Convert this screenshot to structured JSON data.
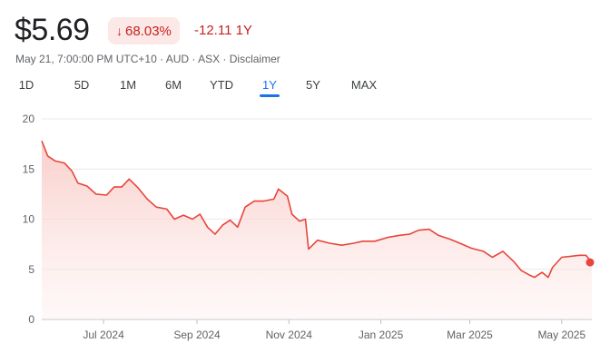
{
  "quote": {
    "price": "$5.69",
    "change_percent": "68.03%",
    "change_abs": "-12.11 1Y",
    "meta": "May 21, 7:00:00 PM UTC+10 · AUD · ASX · Disclaimer"
  },
  "tabs": [
    {
      "label": "1D"
    },
    {
      "label": "5D"
    },
    {
      "label": "1M"
    },
    {
      "label": "6M"
    },
    {
      "label": "YTD"
    },
    {
      "label": "1Y",
      "active": true
    },
    {
      "label": "5Y"
    },
    {
      "label": "MAX"
    }
  ],
  "colors": {
    "line": "#e8453c",
    "fill": "#fbd5d2",
    "negative": "#c5221f",
    "active_tab": "#1a73e8"
  },
  "chart_data": {
    "type": "area",
    "y_ticks": [
      0,
      5,
      10,
      15,
      20
    ],
    "ylim": [
      0,
      20
    ],
    "x_tick_labels": [
      "Jul 2024",
      "Sep 2024",
      "Nov 2024",
      "Jan 2025",
      "Mar 2025",
      "May 2025"
    ],
    "x_tick_dates": [
      "2024-07-01",
      "2024-09-01",
      "2024-11-01",
      "2025-01-01",
      "2025-03-01",
      "2025-05-01"
    ],
    "xlim": [
      "2024-05-21",
      "2025-05-21"
    ],
    "series": [
      {
        "points": [
          [
            "2024-05-21",
            17.8
          ],
          [
            "2024-05-25",
            16.3
          ],
          [
            "2024-05-30",
            15.8
          ],
          [
            "2024-06-05",
            15.6
          ],
          [
            "2024-06-10",
            14.8
          ],
          [
            "2024-06-14",
            13.6
          ],
          [
            "2024-06-20",
            13.3
          ],
          [
            "2024-06-26",
            12.5
          ],
          [
            "2024-07-03",
            12.4
          ],
          [
            "2024-07-08",
            13.2
          ],
          [
            "2024-07-13",
            13.2
          ],
          [
            "2024-07-18",
            14.0
          ],
          [
            "2024-07-24",
            13.1
          ],
          [
            "2024-07-30",
            12.0
          ],
          [
            "2024-08-05",
            11.2
          ],
          [
            "2024-08-12",
            11.0
          ],
          [
            "2024-08-17",
            10.0
          ],
          [
            "2024-08-23",
            10.4
          ],
          [
            "2024-08-29",
            10.0
          ],
          [
            "2024-09-03",
            10.5
          ],
          [
            "2024-09-08",
            9.2
          ],
          [
            "2024-09-13",
            8.5
          ],
          [
            "2024-09-18",
            9.4
          ],
          [
            "2024-09-23",
            9.9
          ],
          [
            "2024-09-28",
            9.2
          ],
          [
            "2024-10-03",
            11.2
          ],
          [
            "2024-10-09",
            11.8
          ],
          [
            "2024-10-15",
            11.8
          ],
          [
            "2024-10-22",
            12.0
          ],
          [
            "2024-10-25",
            13.0
          ],
          [
            "2024-10-31",
            12.3
          ],
          [
            "2024-11-03",
            10.5
          ],
          [
            "2024-11-08",
            9.8
          ],
          [
            "2024-11-12",
            10.0
          ],
          [
            "2024-11-14",
            7.0
          ],
          [
            "2024-11-20",
            7.9
          ],
          [
            "2024-11-28",
            7.6
          ],
          [
            "2024-12-06",
            7.4
          ],
          [
            "2024-12-14",
            7.6
          ],
          [
            "2024-12-20",
            7.8
          ],
          [
            "2024-12-28",
            7.8
          ],
          [
            "2025-01-06",
            8.2
          ],
          [
            "2025-01-14",
            8.4
          ],
          [
            "2025-01-20",
            8.5
          ],
          [
            "2025-01-26",
            8.9
          ],
          [
            "2025-02-02",
            9.0
          ],
          [
            "2025-02-08",
            8.4
          ],
          [
            "2025-02-16",
            8.0
          ],
          [
            "2025-02-24",
            7.5
          ],
          [
            "2025-03-02",
            7.1
          ],
          [
            "2025-03-10",
            6.8
          ],
          [
            "2025-03-16",
            6.2
          ],
          [
            "2025-03-23",
            6.8
          ],
          [
            "2025-03-30",
            5.8
          ],
          [
            "2025-04-04",
            4.9
          ],
          [
            "2025-04-10",
            4.4
          ],
          [
            "2025-04-13",
            4.2
          ],
          [
            "2025-04-18",
            4.7
          ],
          [
            "2025-04-22",
            4.2
          ],
          [
            "2025-04-25",
            5.2
          ],
          [
            "2025-05-01",
            6.2
          ],
          [
            "2025-05-07",
            6.3
          ],
          [
            "2025-05-13",
            6.4
          ],
          [
            "2025-05-17",
            6.4
          ],
          [
            "2025-05-21",
            5.69
          ]
        ]
      }
    ]
  }
}
